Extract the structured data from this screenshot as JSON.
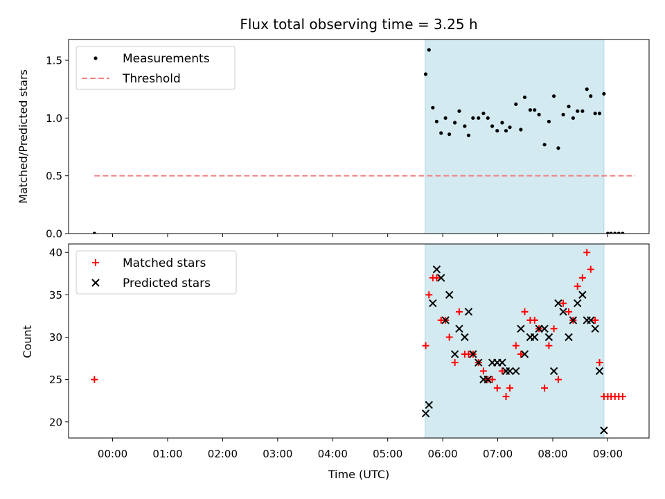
{
  "chart_data": {
    "type": "scatter",
    "title": "Flux total observing time = 3.25 h",
    "xlabel": "Time (UTC)",
    "x_unit": "hours since 00:00 UTC",
    "xlim": [
      -0.8,
      9.75
    ],
    "x_ticks": [
      {
        "v": 0,
        "label": "00:00"
      },
      {
        "v": 1,
        "label": "01:00"
      },
      {
        "v": 2,
        "label": "02:00"
      },
      {
        "v": 3,
        "label": "03:00"
      },
      {
        "v": 4,
        "label": "04:00"
      },
      {
        "v": 5,
        "label": "05:00"
      },
      {
        "v": 6,
        "label": "06:00"
      },
      {
        "v": 7,
        "label": "07:00"
      },
      {
        "v": 8,
        "label": "08:00"
      },
      {
        "v": 9,
        "label": "09:00"
      }
    ],
    "highlight_span": [
      5.68,
      8.93
    ],
    "highlight_color": "#d3eaf0",
    "panels": [
      {
        "id": "ratio",
        "ylabel": "Matched/Predicted stars",
        "ylim": [
          0,
          1.68
        ],
        "y_ticks": [
          {
            "v": 0,
            "label": "0.0"
          },
          {
            "v": 0.5,
            "label": "0.5"
          },
          {
            "v": 1.0,
            "label": "1.0"
          },
          {
            "v": 1.5,
            "label": "1.5"
          }
        ],
        "threshold": {
          "name": "Threshold",
          "value": 0.5,
          "x_range": [
            -0.33,
            9.5
          ],
          "color": "#f08080"
        },
        "series": [
          {
            "name": "Measurements",
            "marker": "dot",
            "color": "#000000",
            "points": [
              [
                -0.33,
                0.0
              ],
              [
                5.69,
                1.38
              ],
              [
                5.75,
                1.59
              ],
              [
                5.82,
                1.09
              ],
              [
                5.89,
                0.97
              ],
              [
                5.97,
                0.87
              ],
              [
                6.05,
                1.0
              ],
              [
                6.12,
                0.86
              ],
              [
                6.22,
                0.96
              ],
              [
                6.3,
                1.06
              ],
              [
                6.4,
                0.93
              ],
              [
                6.47,
                0.85
              ],
              [
                6.55,
                1.0
              ],
              [
                6.65,
                1.0
              ],
              [
                6.74,
                1.04
              ],
              [
                6.82,
                1.0
              ],
              [
                6.9,
                0.93
              ],
              [
                6.99,
                0.89
              ],
              [
                7.08,
                0.96
              ],
              [
                7.15,
                0.89
              ],
              [
                7.22,
                0.92
              ],
              [
                7.33,
                1.12
              ],
              [
                7.42,
                0.9
              ],
              [
                7.49,
                1.18
              ],
              [
                7.59,
                1.07
              ],
              [
                7.67,
                1.07
              ],
              [
                7.75,
                1.03
              ],
              [
                7.85,
                0.77
              ],
              [
                7.93,
                0.97
              ],
              [
                8.02,
                1.19
              ],
              [
                8.1,
                0.74
              ],
              [
                8.19,
                1.03
              ],
              [
                8.29,
                1.1
              ],
              [
                8.37,
                1.0
              ],
              [
                8.45,
                1.06
              ],
              [
                8.54,
                1.06
              ],
              [
                8.62,
                1.25
              ],
              [
                8.69,
                1.19
              ],
              [
                8.77,
                1.04
              ],
              [
                8.85,
                1.04
              ],
              [
                8.93,
                1.21
              ],
              [
                9.0,
                0.0
              ],
              [
                9.06,
                0.0
              ],
              [
                9.13,
                0.0
              ],
              [
                9.2,
                0.0
              ],
              [
                9.27,
                0.0
              ]
            ]
          }
        ],
        "legend": [
          {
            "name": "Measurements",
            "kind": "dot"
          },
          {
            "name": "Threshold",
            "kind": "dashed"
          }
        ]
      },
      {
        "id": "count",
        "ylabel": "Count",
        "ylim": [
          18.1,
          41.0
        ],
        "y_ticks": [
          {
            "v": 20,
            "label": "20"
          },
          {
            "v": 25,
            "label": "25"
          },
          {
            "v": 30,
            "label": "30"
          },
          {
            "v": 35,
            "label": "35"
          },
          {
            "v": 40,
            "label": "40"
          }
        ],
        "series": [
          {
            "name": "Matched stars",
            "marker": "plus",
            "color": "#ff0000",
            "points": [
              [
                -0.33,
                25
              ],
              [
                5.69,
                29
              ],
              [
                5.75,
                35
              ],
              [
                5.82,
                37
              ],
              [
                5.89,
                37
              ],
              [
                5.97,
                32
              ],
              [
                6.05,
                32
              ],
              [
                6.12,
                30
              ],
              [
                6.22,
                27
              ],
              [
                6.3,
                33
              ],
              [
                6.4,
                28
              ],
              [
                6.47,
                28
              ],
              [
                6.55,
                28
              ],
              [
                6.65,
                27
              ],
              [
                6.74,
                26
              ],
              [
                6.82,
                25
              ],
              [
                6.9,
                25
              ],
              [
                6.99,
                24
              ],
              [
                7.08,
                26
              ],
              [
                7.15,
                23
              ],
              [
                7.22,
                24
              ],
              [
                7.33,
                29
              ],
              [
                7.42,
                28
              ],
              [
                7.49,
                33
              ],
              [
                7.59,
                32
              ],
              [
                7.67,
                32
              ],
              [
                7.75,
                31
              ],
              [
                7.85,
                24
              ],
              [
                7.93,
                29
              ],
              [
                8.02,
                31
              ],
              [
                8.1,
                25
              ],
              [
                8.19,
                34
              ],
              [
                8.29,
                33
              ],
              [
                8.37,
                32
              ],
              [
                8.45,
                36
              ],
              [
                8.54,
                37
              ],
              [
                8.62,
                40
              ],
              [
                8.69,
                38
              ],
              [
                8.77,
                32
              ],
              [
                8.85,
                27
              ],
              [
                8.93,
                23
              ],
              [
                9.0,
                23
              ],
              [
                9.06,
                23
              ],
              [
                9.13,
                23
              ],
              [
                9.2,
                23
              ],
              [
                9.27,
                23
              ]
            ]
          },
          {
            "name": "Predicted stars",
            "marker": "x",
            "color": "#000000",
            "points": [
              [
                5.69,
                21
              ],
              [
                5.75,
                22
              ],
              [
                5.82,
                34
              ],
              [
                5.89,
                38
              ],
              [
                5.97,
                37
              ],
              [
                6.05,
                32
              ],
              [
                6.12,
                35
              ],
              [
                6.22,
                28
              ],
              [
                6.3,
                31
              ],
              [
                6.4,
                30
              ],
              [
                6.47,
                33
              ],
              [
                6.55,
                28
              ],
              [
                6.65,
                27
              ],
              [
                6.74,
                25
              ],
              [
                6.82,
                25
              ],
              [
                6.9,
                27
              ],
              [
                6.99,
                27
              ],
              [
                7.08,
                27
              ],
              [
                7.15,
                26
              ],
              [
                7.22,
                26
              ],
              [
                7.33,
                26
              ],
              [
                7.42,
                31
              ],
              [
                7.49,
                28
              ],
              [
                7.59,
                30
              ],
              [
                7.67,
                30
              ],
              [
                7.75,
                31
              ],
              [
                7.85,
                31
              ],
              [
                7.93,
                30
              ],
              [
                8.02,
                26
              ],
              [
                8.1,
                34
              ],
              [
                8.19,
                33
              ],
              [
                8.29,
                30
              ],
              [
                8.37,
                32
              ],
              [
                8.45,
                34
              ],
              [
                8.54,
                35
              ],
              [
                8.62,
                32
              ],
              [
                8.69,
                32
              ],
              [
                8.77,
                31
              ],
              [
                8.85,
                26
              ],
              [
                8.93,
                19
              ]
            ]
          }
        ],
        "legend": [
          {
            "name": "Matched stars",
            "kind": "plus"
          },
          {
            "name": "Predicted stars",
            "kind": "x"
          }
        ]
      }
    ]
  }
}
